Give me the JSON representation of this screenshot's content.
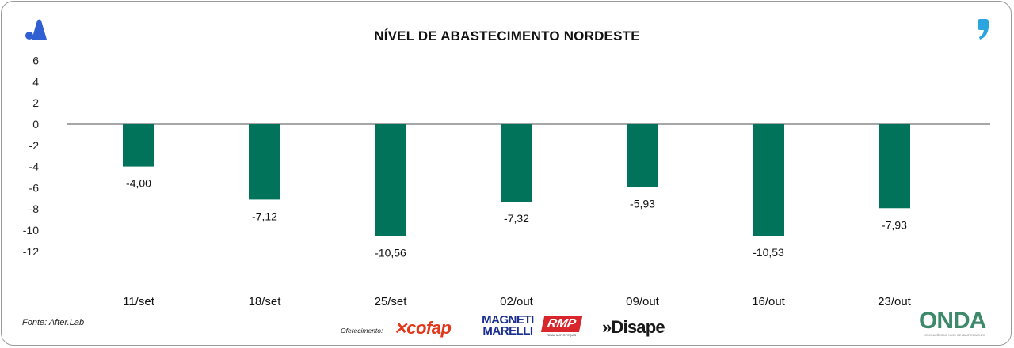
{
  "chart_data": {
    "type": "bar",
    "title": "NÍVEL DE ABASTECIMENTO NORDESTE",
    "categories": [
      "11/set",
      "18/set",
      "25/set",
      "02/out",
      "09/out",
      "16/out",
      "23/out"
    ],
    "values": [
      -4.0,
      -7.12,
      -10.56,
      -7.32,
      -5.93,
      -10.53,
      -7.93
    ],
    "value_labels": [
      "-4,00",
      "-7,12",
      "-10,56",
      "-7,32",
      "-5,93",
      "-10,53",
      "-7,93"
    ],
    "y_ticks": [
      6,
      4,
      2,
      0,
      -2,
      -4,
      -6,
      -8,
      -10,
      -12
    ],
    "ylim": [
      -12,
      6
    ],
    "xlabel": "",
    "ylabel": "",
    "grid": false,
    "bar_color": "#00735a",
    "axis_color": "#8a8a8a"
  },
  "footer": {
    "source": "Fonte: After.Lab",
    "sponsor_label": "Oferecimento:",
    "sponsors": [
      "cofap",
      "MAGNETI MARELLI",
      "RMP",
      "»Disape"
    ],
    "rmp_sub": "REAL MOTOPEÇAS",
    "brand": "ONDA",
    "brand_sub": "OSCILAÇÕES NO NÍVEL DE ABASTECIMENTO"
  },
  "colors": {
    "brand_blue": "#2f5fd0",
    "comma_blue": "#2aa5e0",
    "onda_green": "#3c8a6a"
  }
}
